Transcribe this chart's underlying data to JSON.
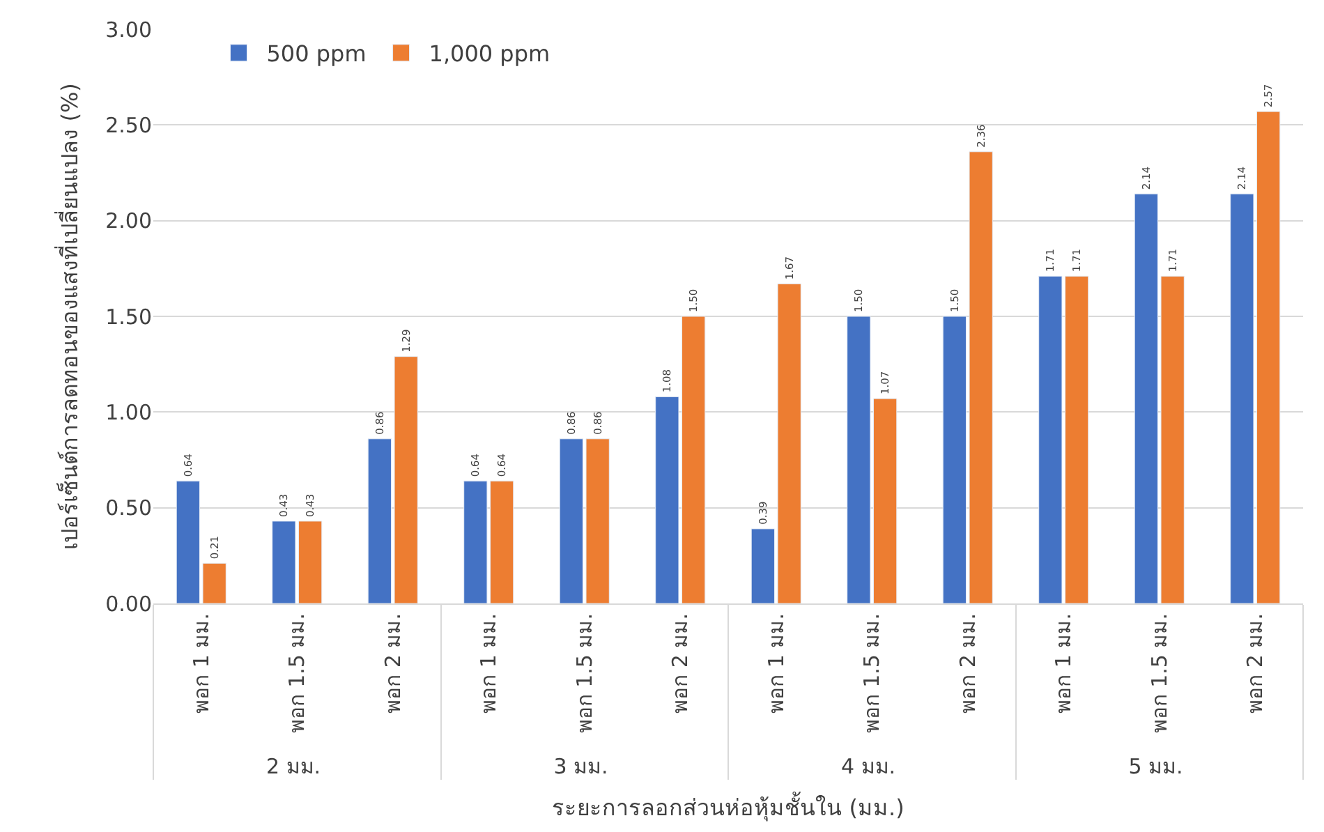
{
  "chart_data": {
    "type": "bar",
    "xlabel": "ระยะการลอกส่วนห่อหุ้มชั้นใน (มม.)",
    "ylabel": "เปอร์เซ็นต์การลดทอนของแสงที่เปลี่ยนแปลง (%)",
    "categories": [
      "พอก 1 มม.",
      "พอก 1.5 มม.",
      "พอก 2 มม.",
      "พอก 1 มม.",
      "พอก 1.5 มม.",
      "พอก 2 มม.",
      "พอก 1 มม.",
      "พอก 1.5 มม.",
      "พอก 2 มม.",
      "พอก 1 มม.",
      "พอก 1.5 มม.",
      "พอก 2 มม."
    ],
    "annotations": [
      "2 มม.",
      "3 มม.",
      "4 มม.",
      "5 มม."
    ],
    "series": [
      {
        "name": "500 ppm",
        "color": "#4472c4",
        "values": [
          0.64,
          0.43,
          0.86,
          0.64,
          0.86,
          1.08,
          0.39,
          1.5,
          1.5,
          1.71,
          2.14,
          2.14
        ]
      },
      {
        "name": "1,000 ppm",
        "color": "#ed7d31",
        "values": [
          0.21,
          0.43,
          1.29,
          0.64,
          0.86,
          1.5,
          1.67,
          1.07,
          2.36,
          1.71,
          1.71,
          2.57
        ]
      }
    ],
    "value_labels": [
      [
        "0.64",
        "0.43",
        "0.86",
        "0.64",
        "0.86",
        "1.08",
        "0.39",
        "1.50",
        "1.50",
        "1.71",
        "2.14",
        "2.14"
      ],
      [
        "0.21",
        "0.43",
        "1.29",
        "0.64",
        "0.86",
        "1.50",
        "1.67",
        "1.07",
        "2.36",
        "1.71",
        "1.71",
        "2.57"
      ]
    ],
    "ylim": [
      0,
      3
    ],
    "yticks": [
      {
        "value": 0,
        "label": "0.00"
      },
      {
        "value": 0.5,
        "label": "0.50"
      },
      {
        "value": 1,
        "label": "1.00"
      },
      {
        "value": 1.5,
        "label": "1.50"
      },
      {
        "value": 2,
        "label": "2.00"
      },
      {
        "value": 2.5,
        "label": "2.50"
      },
      {
        "value": 3,
        "label": "3.00"
      }
    ],
    "grid": "y",
    "legend": "top left"
  }
}
